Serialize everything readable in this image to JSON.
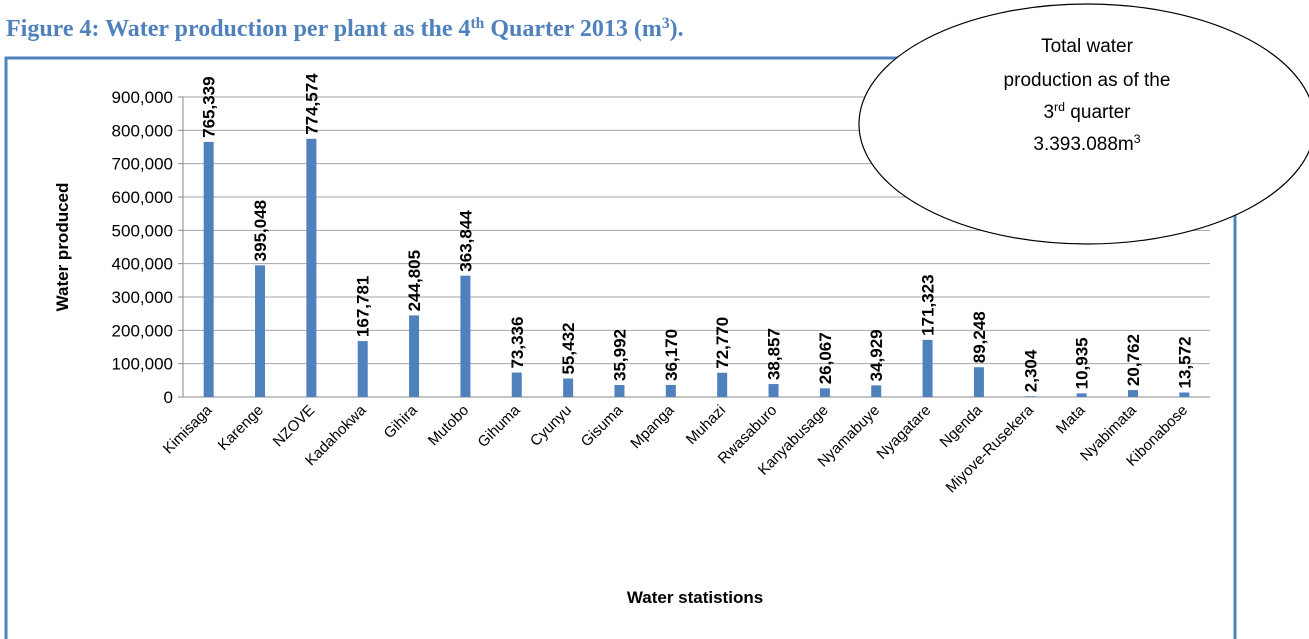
{
  "chart_data": {
    "type": "bar",
    "title": [
      "Figure 4: Water production per plant as the 4",
      {
        "sup": "th"
      },
      " Quarter 2013 (m",
      {
        "sup": "3"
      },
      ")."
    ],
    "y_label": "Water produced",
    "x_label": "Water statistions",
    "annotation": [
      [
        "Total water"
      ],
      [
        "production as of the"
      ],
      [
        "3",
        {
          "sup": "rd"
        },
        " quarter"
      ],
      [
        "3.393.088m",
        {
          "sup": "3"
        }
      ]
    ],
    "categories": [
      "Kimisaga",
      "Karenge",
      "NZOVE",
      "Kadahokwa",
      "Gihira",
      "Mutobo",
      "Gihuma",
      "Cyunyu",
      "Gisuma",
      "Mpanga",
      "Muhazi",
      "Rwasaburo",
      "Kanyabusage",
      "Nyamabuye",
      "Nyagatare",
      "Ngenda",
      "Miyove-Rusekera",
      "Mata",
      "Nyabimata",
      "Kibonabose"
    ],
    "values": [
      765339,
      395048,
      774574,
      167781,
      244805,
      363844,
      73336,
      55432,
      35992,
      36170,
      72770,
      38857,
      26067,
      34929,
      171323,
      89248,
      2304,
      10935,
      20762,
      13572
    ],
    "value_labels": [
      "765,339",
      "395,048",
      "774,574",
      "167,781",
      "244,805",
      "363,844",
      "73,336",
      "55,432",
      "35,992",
      "36,170",
      "72,770",
      "38,857",
      "26,067",
      "34,929",
      "171,323",
      "89,248",
      "2,304",
      "10,935",
      "20,762",
      "13,572"
    ],
    "color": "#4f81bd",
    "ylim": [
      0,
      900000
    ],
    "yticks": [
      0,
      {
        "value": 100000,
        "label": "100,000"
      },
      {
        "value": 200000,
        "label": "200,000"
      },
      {
        "value": 300000,
        "label": "300,000"
      },
      {
        "value": 400000,
        "label": "400,000"
      },
      {
        "value": 500000,
        "label": "500,000"
      },
      {
        "value": 600000,
        "label": "600,000"
      },
      {
        "value": 700000,
        "label": "700,000"
      },
      {
        "value": 800000,
        "label": "800,000"
      },
      {
        "value": 900000,
        "label": "900,000"
      }
    ],
    "grid": true
  }
}
